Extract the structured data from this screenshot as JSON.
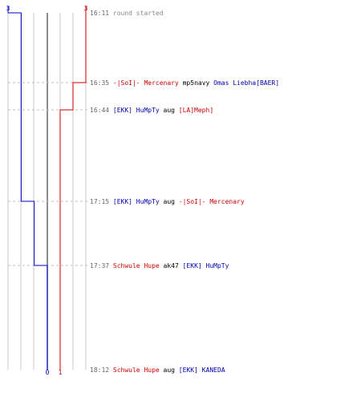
{
  "chart_data": {
    "type": "line",
    "teams": [
      {
        "name": "blue",
        "color": "#0000cc",
        "start_label": "3",
        "end_label": "0"
      },
      {
        "name": "red",
        "color": "#cc0000",
        "start_label": "3",
        "end_label": "1"
      }
    ],
    "events": [
      {
        "time": "16:11",
        "parts": [
          {
            "text": "round started",
            "color": "#888888"
          }
        ]
      },
      {
        "time": "16:35",
        "parts": [
          {
            "text": "-|SoI|- Mercenary",
            "color": "#cc0000"
          },
          {
            "text": "mp5navy",
            "color": "#000000"
          },
          {
            "text": "Omas Liebha[BAER]",
            "color": "#0000aa"
          }
        ]
      },
      {
        "time": "16:44",
        "parts": [
          {
            "text": "[EKK] HuMpTy",
            "color": "#0000aa"
          },
          {
            "text": "aug",
            "color": "#000000"
          },
          {
            "text": "[LA]Meph]",
            "color": "#cc0000"
          }
        ]
      },
      {
        "time": "17:15",
        "parts": [
          {
            "text": "[EKK] HuMpTy",
            "color": "#0000aa"
          },
          {
            "text": "aug",
            "color": "#000000"
          },
          {
            "text": "-|SoI|- Mercenary",
            "color": "#cc0000"
          }
        ]
      },
      {
        "time": "17:37",
        "parts": [
          {
            "text": "Schwule Hupe",
            "color": "#cc0000"
          },
          {
            "text": "ak47",
            "color": "#000000"
          },
          {
            "text": "[EKK] HuMpTy",
            "color": "#0000aa"
          }
        ]
      },
      {
        "time": "18:12",
        "parts": [
          {
            "text": "Schwule Hupe",
            "color": "#cc0000"
          },
          {
            "text": "aug",
            "color": "#000000"
          },
          {
            "text": "[EKK] KANEDA",
            "color": "#0000aa"
          }
        ]
      }
    ],
    "series": [
      {
        "name": "blue",
        "color": "#0000cc",
        "values": [
          3,
          2,
          2,
          2,
          1,
          0
        ]
      },
      {
        "name": "red",
        "color": "#cc0000",
        "values": [
          3,
          3,
          2,
          1,
          1,
          1
        ]
      }
    ],
    "ylim": [
      0,
      3
    ],
    "grid": true
  }
}
